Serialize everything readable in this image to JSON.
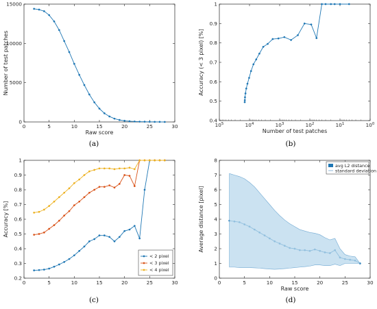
{
  "panels": [
    {
      "id": "a",
      "caption": "(a)",
      "chart_data": {
        "type": "line",
        "xlabel": "Raw score",
        "ylabel": "Number of test patches",
        "xlim": [
          0,
          30
        ],
        "ylim": [
          0,
          15000
        ],
        "xticks": [
          0,
          5,
          10,
          15,
          20,
          25,
          30
        ],
        "yticks": [
          0,
          5000,
          10000,
          15000
        ],
        "grid": false,
        "series": [
          {
            "color": "#1f77b4",
            "x": [
              2,
              3,
              4,
              5,
              6,
              7,
              8,
              9,
              10,
              11,
              12,
              13,
              14,
              15,
              16,
              17,
              18,
              19,
              20,
              21,
              22,
              23,
              24,
              25,
              26,
              27,
              28
            ],
            "y": [
              14400,
              14300,
              14100,
              13600,
              12800,
              11700,
              10300,
              8900,
              7400,
              6000,
              4700,
              3500,
              2500,
              1700,
              1100,
              700,
              420,
              250,
              150,
              90,
              60,
              40,
              30,
              20,
              15,
              10,
              5
            ]
          }
        ]
      }
    },
    {
      "id": "b",
      "caption": "(b)",
      "chart_data": {
        "type": "line",
        "xlabel": "Number of test patches",
        "ylabel": "Accuracy (< 3 pixel) [%]",
        "xscale": "log",
        "xreversed": true,
        "xlim": [
          100000,
          1
        ],
        "ylim": [
          0.4,
          1
        ],
        "xticks": [
          100000,
          10000,
          1000,
          100,
          10,
          1
        ],
        "xticklabels": [
          "10^5",
          "10^4",
          "10^3",
          "10^2",
          "10^1",
          "10^0"
        ],
        "yticks": [
          0.4,
          0.5,
          0.6,
          0.7,
          0.8,
          0.9,
          1
        ],
        "grid": false,
        "series": [
          {
            "color": "#1f77b4",
            "x": [
              14400,
              14300,
              14100,
              13600,
              12800,
              11700,
              10300,
              8900,
              7400,
              6000,
              4700,
              3500,
              2500,
              1700,
              1100,
              700,
              420,
              250,
              150,
              90,
              60,
              40,
              30,
              20,
              15,
              10,
              5
            ],
            "y": [
              0.495,
              0.505,
              0.52,
              0.54,
              0.565,
              0.59,
              0.62,
              0.655,
              0.69,
              0.715,
              0.745,
              0.78,
              0.795,
              0.82,
              0.823,
              0.83,
              0.815,
              0.84,
              0.9,
              0.895,
              0.825,
              1.0,
              1.0,
              1.0,
              1.0,
              1.0,
              1.0
            ]
          }
        ]
      }
    },
    {
      "id": "c",
      "caption": "(c)",
      "chart_data": {
        "type": "line",
        "xlabel": "",
        "ylabel": "Accuracy [%]",
        "xlim": [
          0,
          30
        ],
        "ylim": [
          0.2,
          1
        ],
        "xticks": [
          0,
          5,
          10,
          15,
          20,
          25,
          30
        ],
        "yticks": [
          0.2,
          0.3,
          0.4,
          0.5,
          0.6,
          0.7,
          0.8,
          0.9,
          1
        ],
        "grid": false,
        "legend": "bottom-right",
        "series": [
          {
            "name": "< 2 pixel",
            "color": "#1f77b4",
            "x": [
              2,
              3,
              4,
              5,
              6,
              7,
              8,
              9,
              10,
              11,
              12,
              13,
              14,
              15,
              16,
              17,
              18,
              19,
              20,
              21,
              22,
              23,
              24,
              25,
              26,
              27,
              28
            ],
            "y": [
              0.253,
              0.255,
              0.258,
              0.265,
              0.278,
              0.293,
              0.31,
              0.33,
              0.355,
              0.385,
              0.415,
              0.45,
              0.465,
              0.49,
              0.49,
              0.48,
              0.45,
              0.48,
              0.52,
              0.53,
              0.555,
              0.47,
              0.8,
              1.0,
              1.0,
              1.0,
              1.0
            ]
          },
          {
            "name": "< 3 pixel",
            "color": "#d95319",
            "x": [
              2,
              3,
              4,
              5,
              6,
              7,
              8,
              9,
              10,
              11,
              12,
              13,
              14,
              15,
              16,
              17,
              18,
              19,
              20,
              21,
              22,
              23,
              24,
              25,
              26,
              27,
              28
            ],
            "y": [
              0.495,
              0.5,
              0.51,
              0.535,
              0.56,
              0.59,
              0.625,
              0.655,
              0.695,
              0.72,
              0.75,
              0.78,
              0.8,
              0.82,
              0.82,
              0.83,
              0.815,
              0.84,
              0.9,
              0.895,
              0.825,
              1.0,
              1.0,
              1.0,
              1.0,
              1.0,
              1.0
            ]
          },
          {
            "name": "< 4 pixel",
            "color": "#edb120",
            "x": [
              2,
              3,
              4,
              5,
              6,
              7,
              8,
              9,
              10,
              11,
              12,
              13,
              14,
              15,
              16,
              17,
              18,
              19,
              20,
              21,
              22,
              23,
              24,
              25,
              26,
              27,
              28
            ],
            "y": [
              0.645,
              0.65,
              0.665,
              0.69,
              0.72,
              0.75,
              0.78,
              0.81,
              0.845,
              0.87,
              0.9,
              0.925,
              0.935,
              0.945,
              0.945,
              0.945,
              0.94,
              0.945,
              0.945,
              0.95,
              0.94,
              1.0,
              1.0,
              1.0,
              1.0,
              1.0,
              1.0
            ]
          }
        ]
      }
    },
    {
      "id": "d",
      "caption": "(d)",
      "chart_data": {
        "type": "line",
        "xlabel": "Raw score",
        "ylabel": "Average distance [pixel]",
        "xlim": [
          0,
          30
        ],
        "ylim": [
          0,
          8
        ],
        "xticks": [
          0,
          5,
          10,
          15,
          20,
          25,
          30
        ],
        "yticks": [
          0,
          1,
          2,
          3,
          4,
          5,
          6,
          7,
          8
        ],
        "grid": false,
        "legend": "top-right",
        "series": [
          {
            "name": "avg L2 distance",
            "color": "#1f77b4",
            "x": [
              2,
              3,
              4,
              5,
              6,
              7,
              8,
              9,
              10,
              11,
              12,
              13,
              14,
              15,
              16,
              17,
              18,
              19,
              20,
              21,
              22,
              23,
              24,
              25,
              26,
              27,
              28
            ],
            "y": [
              3.9,
              3.85,
              3.8,
              3.65,
              3.5,
              3.3,
              3.1,
              2.9,
              2.7,
              2.5,
              2.35,
              2.2,
              2.05,
              2.0,
              1.9,
              1.9,
              1.85,
              1.95,
              1.85,
              1.75,
              1.7,
              1.9,
              1.4,
              1.3,
              1.25,
              1.2,
              1.0
            ]
          },
          {
            "name": "standard deviation",
            "color": "#b9d8ec",
            "x": [
              2,
              3,
              4,
              5,
              6,
              7,
              8,
              9,
              10,
              11,
              12,
              13,
              14,
              15,
              16,
              17,
              18,
              19,
              20,
              21,
              22,
              23,
              24,
              25,
              26,
              27,
              28
            ],
            "upper": [
              7.1,
              7.0,
              6.9,
              6.75,
              6.5,
              6.2,
              5.8,
              5.4,
              5.0,
              4.6,
              4.25,
              3.95,
              3.7,
              3.5,
              3.3,
              3.2,
              3.1,
              3.05,
              2.95,
              2.75,
              2.6,
              2.7,
              2.0,
              1.6,
              1.5,
              1.45,
              1.0
            ],
            "lower": [
              0.75,
              0.75,
              0.72,
              0.72,
              0.72,
              0.7,
              0.68,
              0.65,
              0.62,
              0.6,
              0.62,
              0.65,
              0.68,
              0.72,
              0.75,
              0.78,
              0.82,
              0.9,
              0.9,
              0.85,
              0.85,
              0.95,
              0.85,
              1.0,
              1.0,
              1.0,
              1.0
            ]
          }
        ]
      }
    }
  ]
}
